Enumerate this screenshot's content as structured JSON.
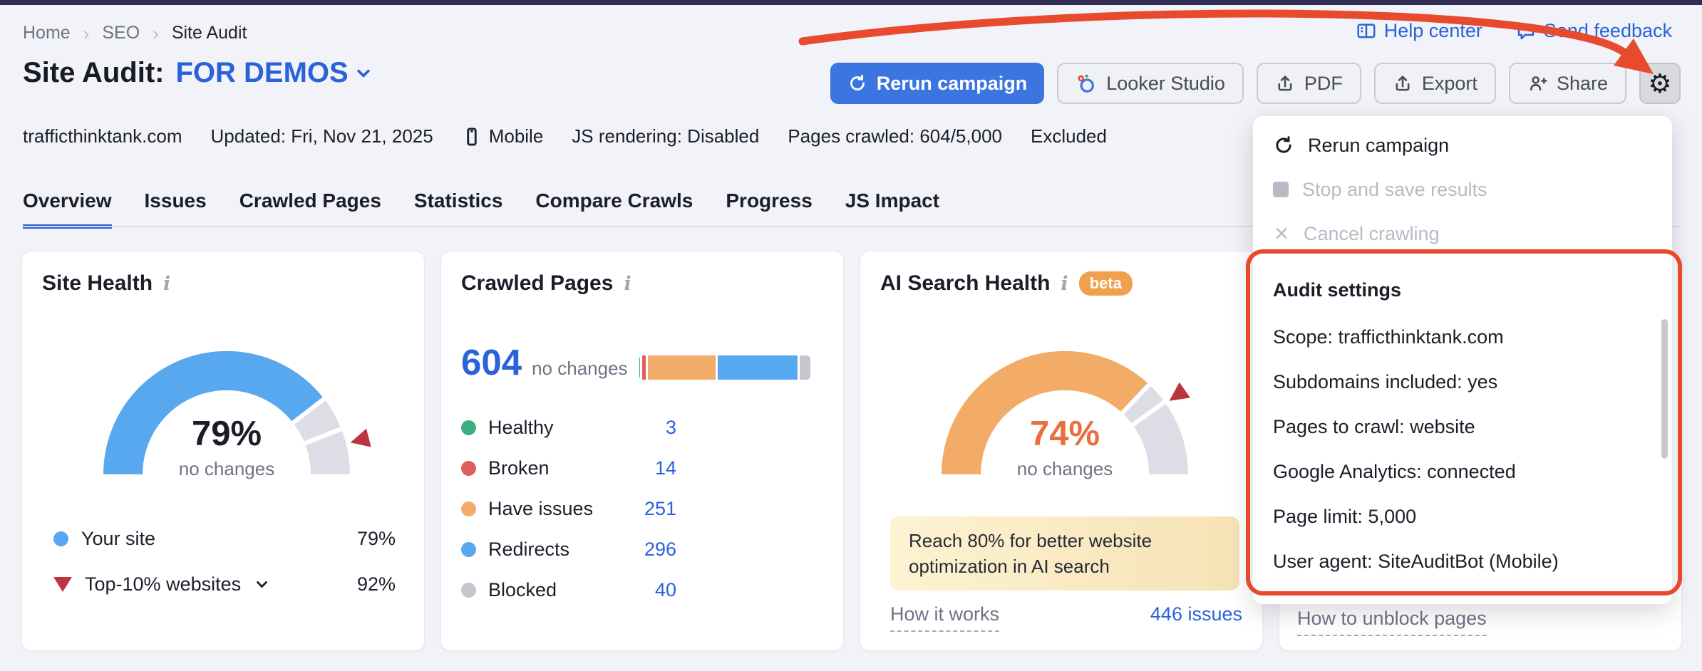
{
  "icons": {
    "breadcrumb_sep": "›",
    "gear": "⚙",
    "close": "×"
  },
  "breadcrumb": {
    "items": [
      "Home",
      "SEO",
      "Site Audit"
    ]
  },
  "top_links": {
    "help_center": "Help center",
    "send_feedback": "Send feedback"
  },
  "header": {
    "title": "Site Audit:",
    "campaign": "FOR DEMOS"
  },
  "actions": {
    "rerun": "Rerun campaign",
    "looker": "Looker Studio",
    "pdf": "PDF",
    "export": "Export",
    "share": "Share"
  },
  "meta": {
    "domain": "trafficthinktank.com",
    "updated": "Updated: Fri, Nov 21, 2025",
    "device": "Mobile",
    "js_rendering": "JS rendering: Disabled",
    "pages_crawled": "Pages crawled: 604/5,000",
    "excluded": "Excluded"
  },
  "tabs": {
    "items": [
      "Overview",
      "Issues",
      "Crawled Pages",
      "Statistics",
      "Compare Crawls",
      "Progress",
      "JS Impact"
    ]
  },
  "cards": {
    "site_health": {
      "title": "Site Health",
      "value_label": "79%",
      "change_label": "no changes",
      "legend": [
        {
          "label": "Your site",
          "value": "79%"
        },
        {
          "label": "Top-10% websites",
          "value": "92%"
        }
      ]
    },
    "crawled_pages": {
      "title": "Crawled Pages",
      "total": "604",
      "change_label": "no changes",
      "legend": [
        {
          "label": "Healthy",
          "value": "3"
        },
        {
          "label": "Broken",
          "value": "14"
        },
        {
          "label": "Have issues",
          "value": "251"
        },
        {
          "label": "Redirects",
          "value": "296"
        },
        {
          "label": "Blocked",
          "value": "40"
        }
      ]
    },
    "ai_search_health": {
      "title": "AI Search Health",
      "badge": "beta",
      "value_label": "74%",
      "change_label": "no changes",
      "banner": "Reach 80% for better website optimization in AI search",
      "how_it_works": "How it works",
      "issues_link": "446 issues"
    },
    "blocked_card": {
      "unblock_link": "How to unblock pages"
    }
  },
  "dropdown": {
    "menu": [
      {
        "label": "Rerun campaign",
        "disabled": false
      },
      {
        "label": "Stop and save results",
        "disabled": true
      },
      {
        "label": "Cancel crawling",
        "disabled": true
      }
    ],
    "settings_title": "Audit settings",
    "settings": [
      "Scope: trafficthinktank.com",
      "Subdomains included: yes",
      "Pages to crawl: website",
      "Google Analytics: connected",
      "Page limit: 5,000",
      "User agent: SiteAuditBot (Mobile)"
    ]
  },
  "colors": {
    "accent_blue": "#3b76e0",
    "link_blue": "#2a62d9",
    "gauge_gray": "#dddee5",
    "marker_red": "#bc3440",
    "annotation_red": "#e84a2e",
    "beta_orange": "#f0a14e",
    "topbar_navy": "#332e55"
  },
  "chart_data": [
    {
      "type": "gauge",
      "title": "Site Health",
      "value": 79,
      "unit": "%",
      "compare_marker": 92,
      "series": [
        {
          "name": "Your site",
          "value": 79
        },
        {
          "name": "Top-10% websites",
          "value": 92
        }
      ],
      "color": "#57a8ee"
    },
    {
      "type": "bar",
      "title": "Crawled Pages",
      "total": 604,
      "categories": [
        "Healthy",
        "Broken",
        "Have issues",
        "Redirects",
        "Blocked"
      ],
      "values": [
        3,
        14,
        251,
        296,
        40
      ],
      "colors": [
        "#3fae7e",
        "#e25d5d",
        "#f2ab68",
        "#57a8ee",
        "#c4c6cd"
      ]
    },
    {
      "type": "gauge",
      "title": "AI Search Health",
      "value": 74,
      "unit": "%",
      "target_marker": 80,
      "color": "#f3ac67"
    }
  ]
}
